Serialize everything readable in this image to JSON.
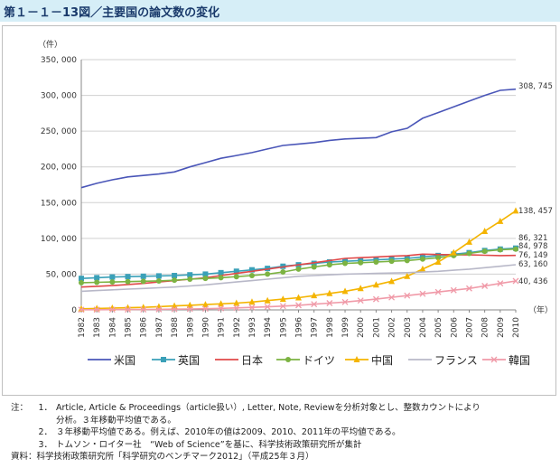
{
  "title": "第１－１－13図／主要国の論文数の変化",
  "chart_data": {
    "type": "line",
    "unit_label": "（件）",
    "x_unit_label": "（年）",
    "ylim": [
      0,
      350000
    ],
    "y_ticks": [
      "0",
      "50, 000",
      "100, 000",
      "150, 000",
      "200, 000",
      "250, 000",
      "300, 000",
      "350, 000"
    ],
    "x": [
      "1982",
      "1983",
      "1984",
      "1985",
      "1986",
      "1987",
      "1988",
      "1989",
      "1990",
      "1991",
      "1992",
      "1993",
      "1994",
      "1995",
      "1996",
      "1997",
      "1998",
      "1999",
      "2000",
      "2001",
      "2002",
      "2003",
      "2004",
      "2005",
      "2006",
      "2007",
      "2008",
      "2009",
      "2010"
    ],
    "grid": "horizontal",
    "legend_position": "bottom",
    "series": [
      {
        "name": "米国",
        "color": "#4a56b8",
        "marker": "none",
        "values": [
          171000,
          177000,
          182000,
          186000,
          188000,
          190000,
          193000,
          200000,
          206000,
          212000,
          216000,
          220000,
          225000,
          230000,
          232000,
          234000,
          237000,
          239000,
          240000,
          241000,
          249000,
          254000,
          268000,
          276000,
          284000,
          292000,
          300000,
          307000,
          308745
        ]
      },
      {
        "name": "英国",
        "color": "#3aa0b8",
        "marker": "square",
        "values": [
          44000,
          45000,
          46000,
          46500,
          47000,
          47500,
          48000,
          49000,
          50000,
          52000,
          54000,
          56000,
          58000,
          61000,
          63000,
          65000,
          67000,
          68000,
          69000,
          70000,
          71000,
          72000,
          74000,
          76000,
          78000,
          80000,
          83000,
          85000,
          86321
        ]
      },
      {
        "name": "日本",
        "color": "#e04848",
        "marker": "none",
        "values": [
          32000,
          33000,
          34000,
          35500,
          37000,
          39000,
          41000,
          43000,
          45000,
          48000,
          51000,
          54000,
          57000,
          60000,
          63000,
          66000,
          69000,
          72000,
          73000,
          74000,
          75000,
          76000,
          78000,
          77500,
          77000,
          77000,
          76500,
          76000,
          76149
        ]
      },
      {
        "name": "ドイツ",
        "color": "#7cb342",
        "marker": "circle",
        "values": [
          38000,
          38500,
          39000,
          39500,
          40000,
          40500,
          41500,
          43000,
          44000,
          45000,
          46500,
          48000,
          50000,
          53000,
          57000,
          60000,
          63000,
          65000,
          66000,
          67000,
          68000,
          69000,
          71000,
          73000,
          76000,
          79000,
          82000,
          84000,
          84978
        ]
      },
      {
        "name": "中国",
        "color": "#f4b400",
        "marker": "triangle",
        "values": [
          1500,
          2000,
          2500,
          3000,
          3500,
          4500,
          5500,
          6500,
          7500,
          8500,
          9500,
          11000,
          13000,
          15000,
          17000,
          20000,
          23000,
          26000,
          30000,
          35000,
          40000,
          47000,
          57000,
          67000,
          80000,
          95000,
          110000,
          124000,
          138457
        ]
      },
      {
        "name": "フランス",
        "color": "#b8b8c8",
        "marker": "none",
        "values": [
          26000,
          27000,
          28000,
          29000,
          30000,
          31000,
          32000,
          33500,
          35000,
          37000,
          39000,
          41000,
          43000,
          45000,
          47000,
          48000,
          49000,
          50000,
          50500,
          51000,
          51500,
          52000,
          53000,
          54000,
          55500,
          57000,
          59000,
          61000,
          63160
        ]
      },
      {
        "name": "韓国",
        "color": "#f09aa8",
        "marker": "x",
        "values": [
          200,
          300,
          400,
          500,
          600,
          800,
          1000,
          1300,
          1700,
          2200,
          2800,
          3500,
          4300,
          5300,
          6500,
          8000,
          9500,
          11000,
          13000,
          15000,
          17500,
          20000,
          22500,
          25000,
          27500,
          30000,
          33500,
          37000,
          40436
        ]
      }
    ],
    "end_labels": [
      "308, 745",
      "138, 457",
      "86, 321",
      "84, 978",
      "76, 149",
      "63, 160",
      "40, 436"
    ]
  },
  "notes": {
    "label": "注：",
    "items": [
      {
        "num": "1．",
        "text": "Article, Article & Proceedings（article扱い）, Letter, Note, Reviewを分析対象とし、整数カウントにより"
      },
      {
        "num": "",
        "text": "分析。３年移動平均値である。"
      },
      {
        "num": "2．",
        "text": "３年移動平均値である。例えば、2010年の値は2009、2010、2011年の平均値である。"
      },
      {
        "num": "3．",
        "text": "トムソン・ロイター社　“Web of Science”を基に、科学技術政策研究所が集計"
      }
    ],
    "source": "資料：科学技術政策研究所「科学研究のベンチマーク2012」（平成25年３月）"
  }
}
